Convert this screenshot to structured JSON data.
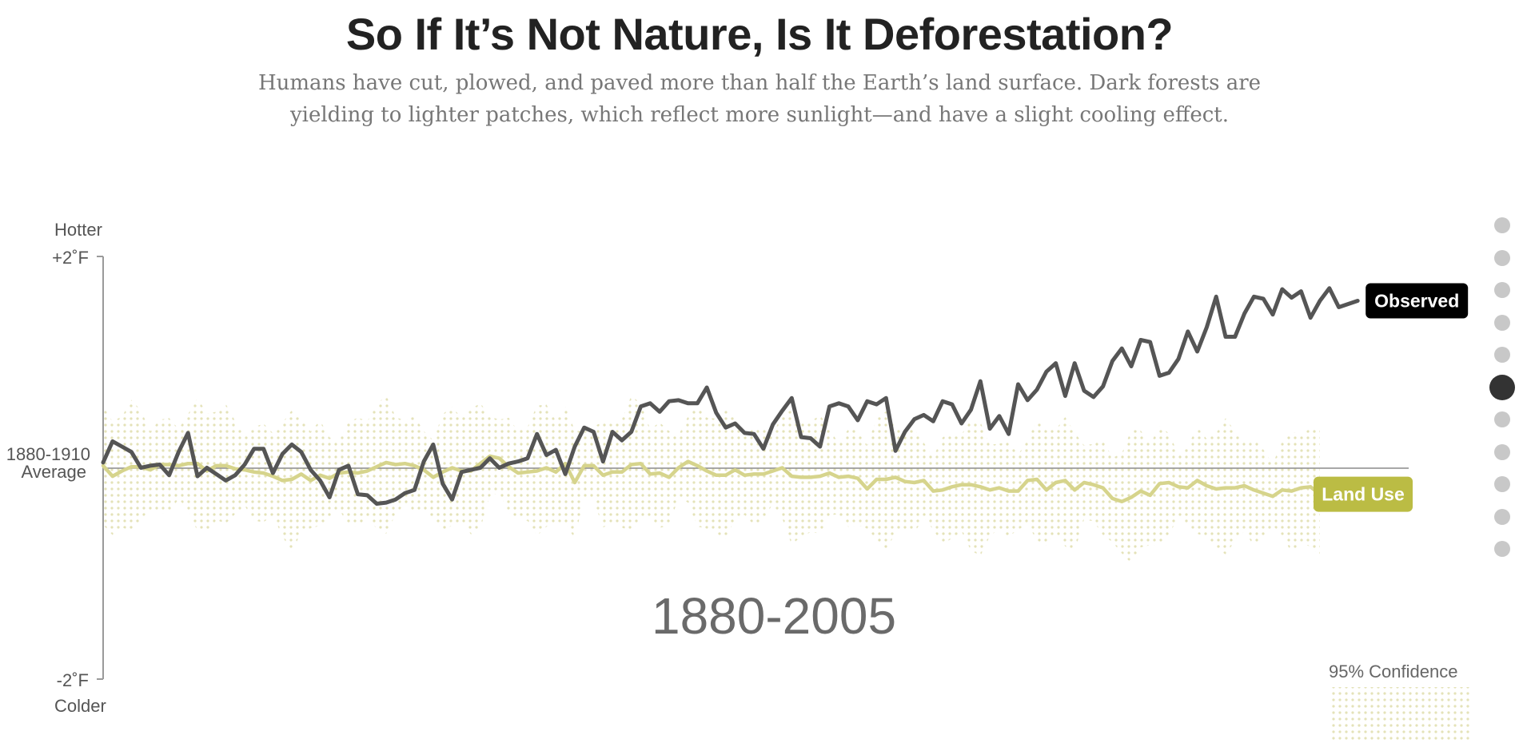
{
  "header": {
    "title": "So If It’s Not Nature, Is It Deforestation?",
    "subtitle": "Humans have cut, plowed, and paved more than half the Earth’s land surface. Dark forests are yielding to lighter patches, which reflect more sunlight—and have a slight cooling effect."
  },
  "chart_data": {
    "type": "line",
    "period_label": "1880-2005",
    "y_axis": {
      "top_label": "Hotter",
      "top_tick": "+2˚F",
      "mid_tick_line1": "1880-1910",
      "mid_tick_line2": "Average",
      "bottom_tick": "-2˚F",
      "bottom_label": "Colder",
      "ylim": [
        -2,
        2
      ]
    },
    "xlim": [
      1880,
      2014
    ],
    "series": [
      {
        "name": "Observed",
        "color": "#555555",
        "label_bg": "#000000",
        "start_year": 1880,
        "values": [
          0.05,
          0.25,
          0.2,
          0.15,
          0,
          0.02,
          0.03,
          -0.07,
          0.15,
          0.33,
          -0.08,
          0,
          -0.06,
          -0.12,
          -0.07,
          0.03,
          0.18,
          0.18,
          -0.05,
          0.13,
          0.22,
          0.15,
          -0.02,
          -0.12,
          -0.28,
          -0.02,
          0.02,
          -0.25,
          -0.26,
          -0.34,
          -0.33,
          -0.3,
          -0.24,
          -0.21,
          0.06,
          0.22,
          -0.15,
          -0.3,
          -0.04,
          -0.02,
          0,
          0.09,
          0,
          0.04,
          0.06,
          0.09,
          0.32,
          0.12,
          0.17,
          -0.06,
          0.2,
          0.38,
          0.34,
          0.06,
          0.34,
          0.26,
          0.34,
          0.58,
          0.61,
          0.53,
          0.63,
          0.64,
          0.61,
          0.61,
          0.76,
          0.52,
          0.38,
          0.42,
          0.33,
          0.32,
          0.18,
          0.41,
          0.54,
          0.66,
          0.29,
          0.28,
          0.2,
          0.58,
          0.61,
          0.58,
          0.45,
          0.63,
          0.6,
          0.66,
          0.16,
          0.34,
          0.46,
          0.5,
          0.44,
          0.63,
          0.6,
          0.42,
          0.55,
          0.82,
          0.37,
          0.49,
          0.32,
          0.79,
          0.64,
          0.74,
          0.91,
          0.99,
          0.68,
          0.99,
          0.73,
          0.67,
          0.77,
          1.01,
          1.13,
          0.96,
          1.21,
          1.19,
          0.87,
          0.9,
          1.03,
          1.29,
          1.1,
          1.33,
          1.62,
          1.24,
          1.24,
          1.46,
          1.62,
          1.6,
          1.45,
          1.69,
          1.61,
          1.67,
          1.42,
          1.58,
          1.7,
          1.52,
          1.55,
          1.58
        ]
      },
      {
        "name": "Land Use",
        "color": "#d6d48c",
        "label_bg": "#bbbc44",
        "start_year": 1880,
        "values": [
          0.02,
          -0.08,
          -0.03,
          0.01,
          0.01,
          -0.02,
          0.03,
          0.03,
          0.02,
          0.04,
          0.04,
          -0.03,
          0.02,
          0.02,
          -0.01,
          -0.02,
          -0.04,
          -0.05,
          -0.08,
          -0.12,
          -0.11,
          -0.06,
          -0.12,
          -0.07,
          -0.1,
          -0.05,
          -0.04,
          -0.05,
          -0.03,
          0.01,
          0.05,
          0.03,
          0.04,
          0.02,
          -0.02,
          -0.09,
          -0.04,
          0,
          -0.03,
          -0.03,
          0.04,
          0.11,
          0.09,
          0.01,
          -0.05,
          -0.04,
          -0.03,
          0,
          -0.04,
          0.04,
          -0.14,
          0.02,
          0.02,
          -0.07,
          -0.04,
          -0.04,
          0.03,
          0.04,
          -0.06,
          -0.05,
          -0.09,
          0,
          0.06,
          0.02,
          -0.03,
          -0.07,
          -0.07,
          -0.02,
          -0.07,
          -0.06,
          -0.06,
          -0.03,
          0,
          -0.08,
          -0.09,
          -0.09,
          -0.08,
          -0.05,
          -0.09,
          -0.08,
          -0.1,
          -0.2,
          -0.11,
          -0.11,
          -0.09,
          -0.13,
          -0.14,
          -0.12,
          -0.22,
          -0.21,
          -0.18,
          -0.16,
          -0.16,
          -0.18,
          -0.21,
          -0.19,
          -0.22,
          -0.22,
          -0.12,
          -0.11,
          -0.21,
          -0.14,
          -0.12,
          -0.21,
          -0.14,
          -0.16,
          -0.19,
          -0.29,
          -0.32,
          -0.28,
          -0.22,
          -0.26,
          -0.15,
          -0.14,
          -0.18,
          -0.19,
          -0.12,
          -0.17,
          -0.2,
          -0.19,
          -0.19,
          -0.17,
          -0.21,
          -0.24,
          -0.27,
          -0.21,
          -0.22,
          -0.19,
          -0.18,
          -0.25
        ]
      }
    ],
    "legend": {
      "text": "95% Confidence",
      "placement": "bottom-right"
    },
    "grid": false
  },
  "nav": {
    "dot_count": 11,
    "active_index": 5
  }
}
